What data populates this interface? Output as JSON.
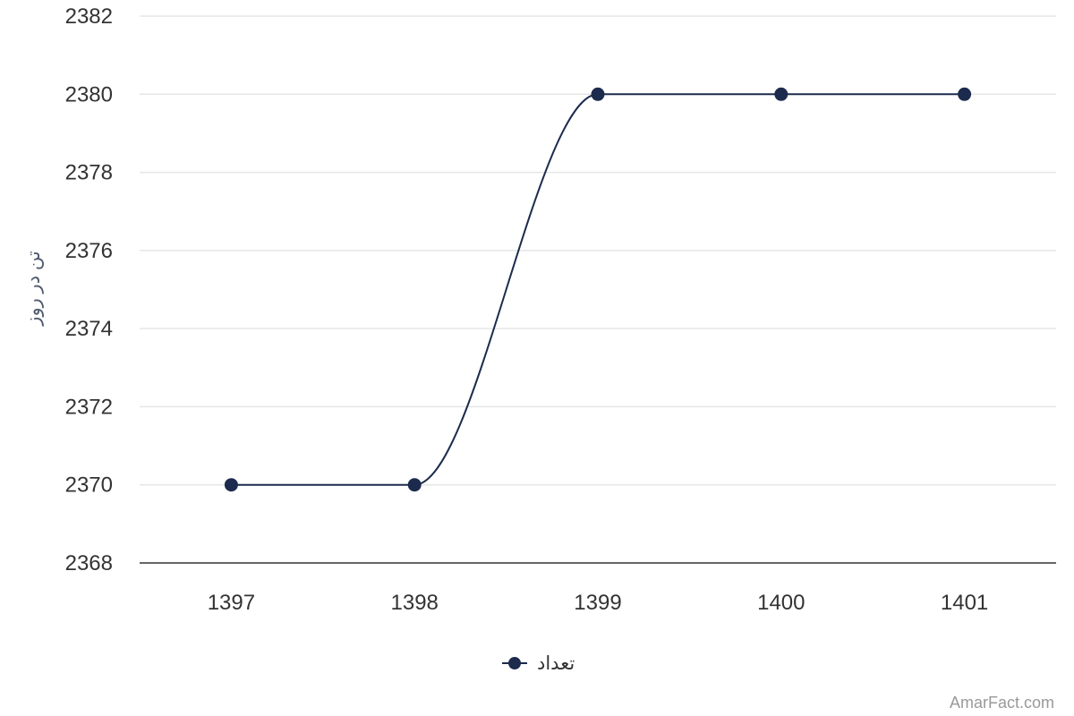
{
  "chart_data": {
    "type": "line",
    "categories": [
      "1397",
      "1398",
      "1399",
      "1400",
      "1401"
    ],
    "series": [
      {
        "name": "تعداد",
        "values": [
          2370,
          2370,
          2380,
          2380,
          2380
        ],
        "color": "#1c2b4d"
      }
    ],
    "ylabel": "تن در روز",
    "xlabel": "",
    "title": "",
    "ylim": [
      2368,
      2382
    ],
    "yticks": [
      "2368",
      "2370",
      "2372",
      "2374",
      "2376",
      "2378",
      "2380",
      "2382"
    ],
    "grid": true,
    "legend_position": "bottom-center",
    "line_style": "smooth"
  },
  "credit": "AmarFact.com",
  "colors": {
    "series": "#1c2b4d",
    "grid": "#e6e6e6",
    "axis": "#333333"
  }
}
